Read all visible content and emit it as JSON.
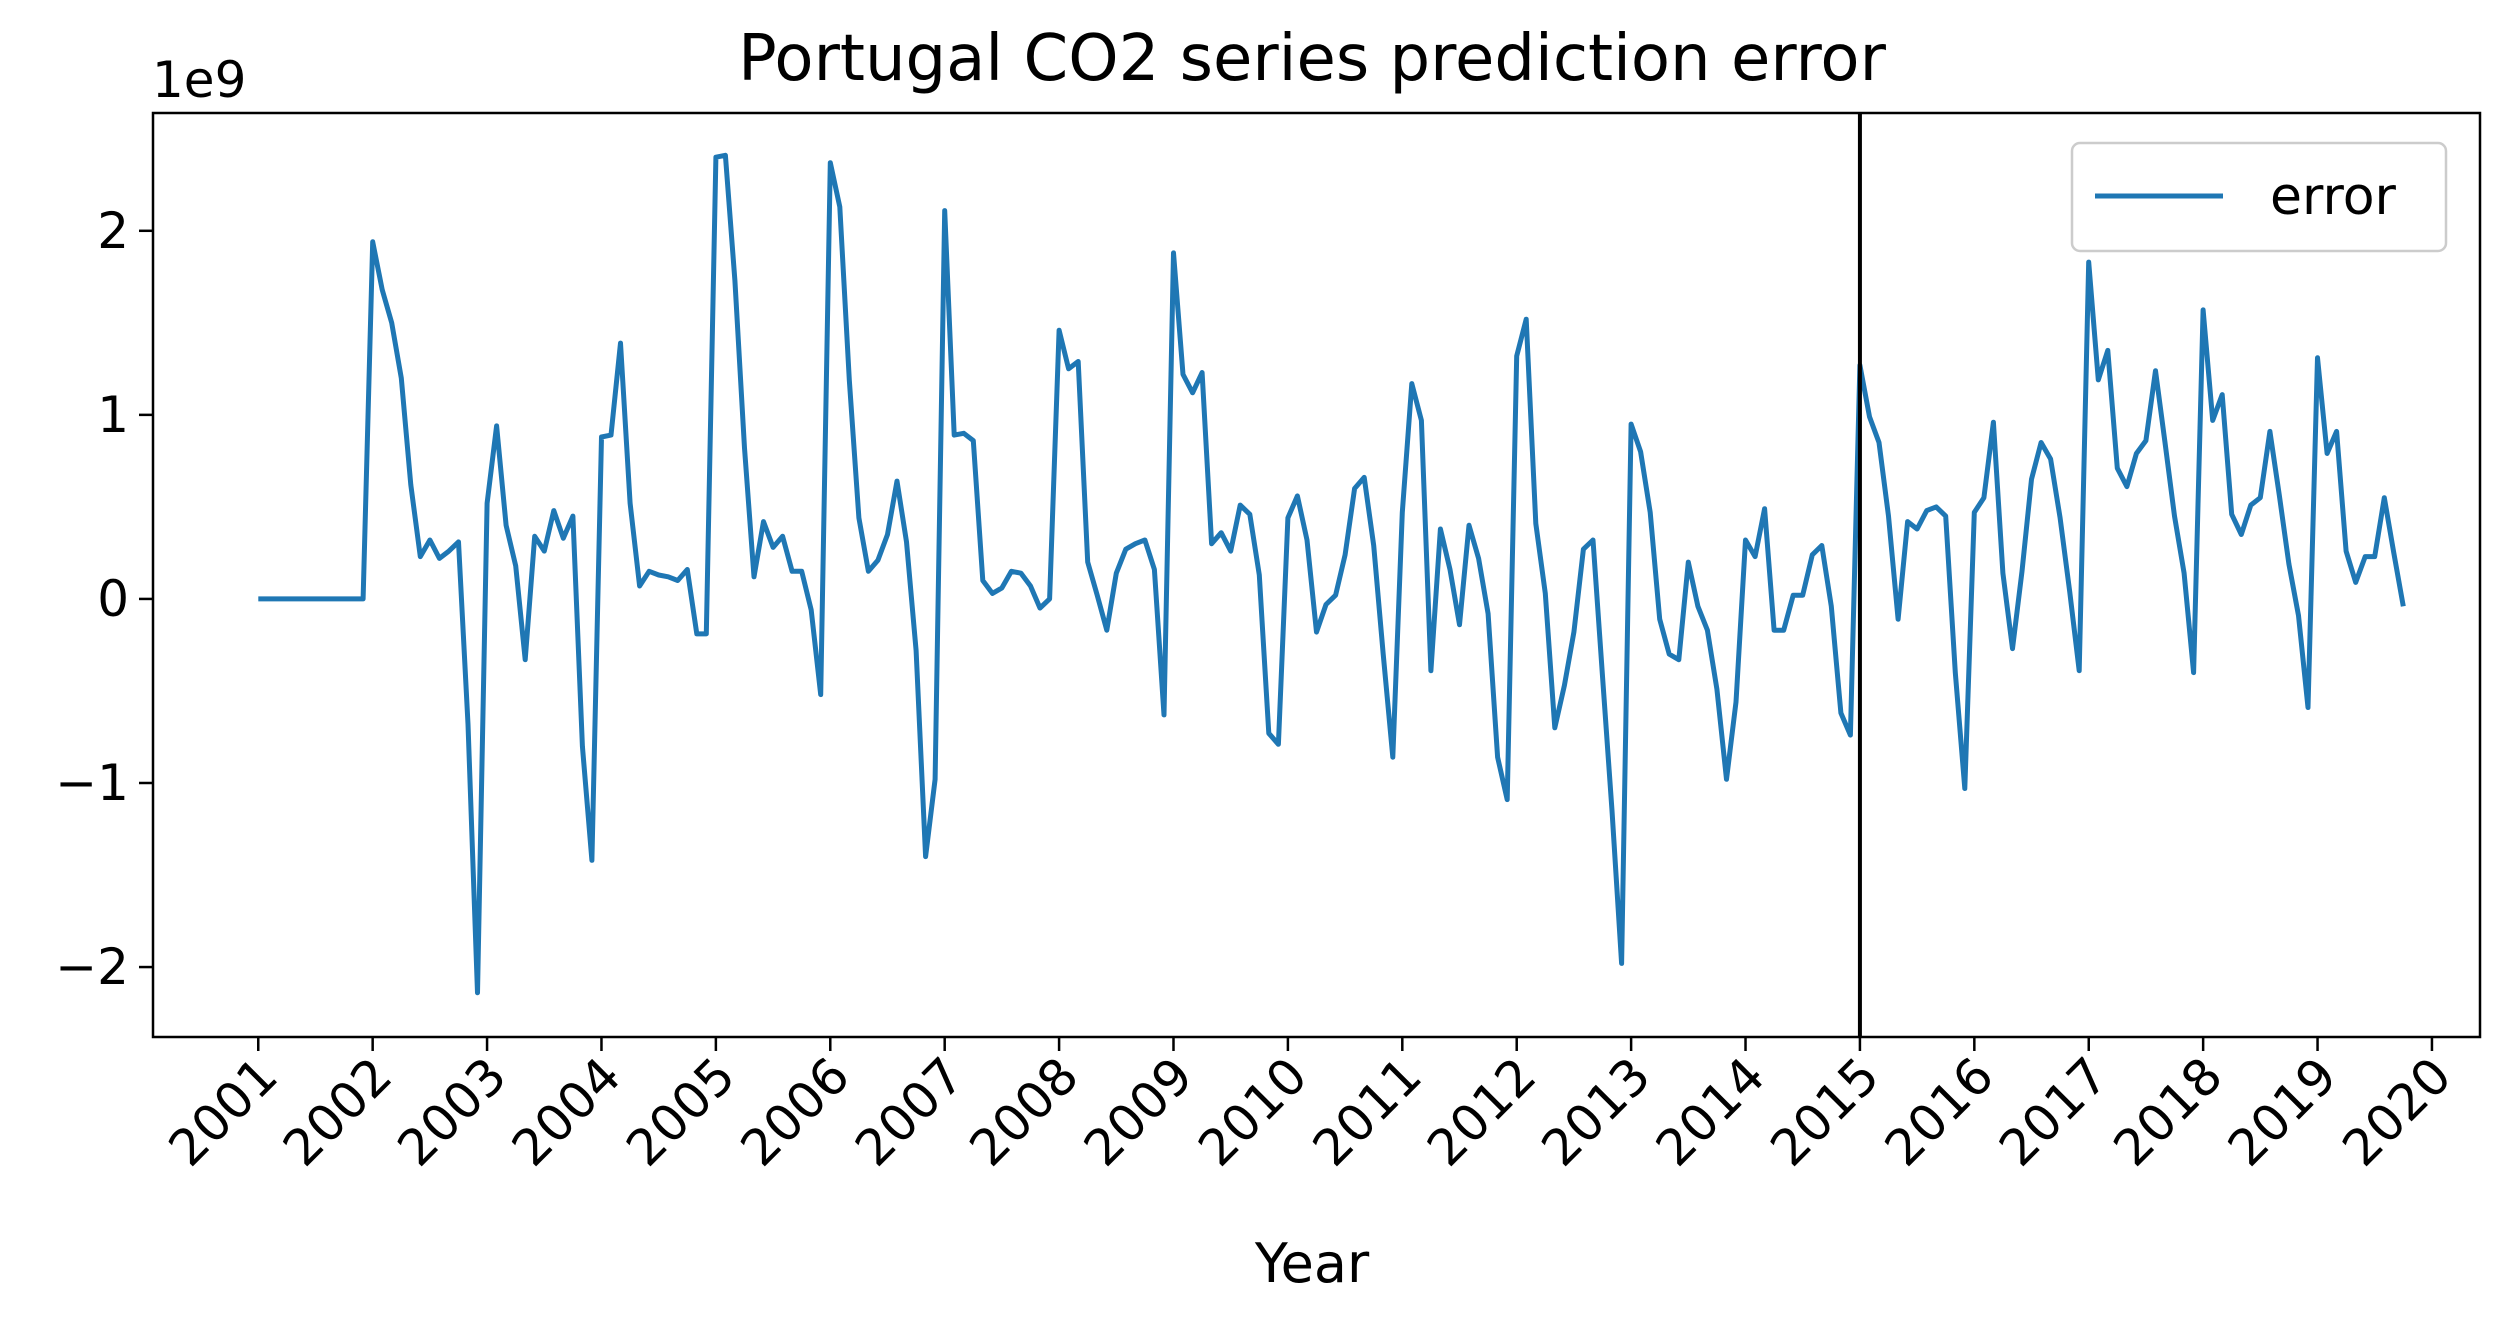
{
  "chart_data": {
    "type": "line",
    "title": "Portugal  CO2 series prediction error",
    "xlabel": "Year",
    "ylabel": "",
    "y_offset_label": "1e9",
    "y_scale_factor": 1000000000,
    "xlim": [
      2000.08,
      2020.42
    ],
    "ylim": [
      -2.38,
      2.64
    ],
    "x_ticks": [
      2001,
      2002,
      2003,
      2004,
      2005,
      2006,
      2007,
      2008,
      2009,
      2010,
      2011,
      2012,
      2013,
      2014,
      2015,
      2016,
      2017,
      2018,
      2019,
      2020
    ],
    "x_tick_labels": [
      "2001",
      "2002",
      "2003",
      "2004",
      "2005",
      "2006",
      "2007",
      "2008",
      "2009",
      "2010",
      "2011",
      "2012",
      "2013",
      "2014",
      "2015",
      "2016",
      "2017",
      "2018",
      "2019",
      "2020"
    ],
    "y_ticks": [
      -2,
      -1,
      0,
      1,
      2
    ],
    "y_tick_labels": [
      "−2",
      "−1",
      "0",
      "1",
      "2"
    ],
    "vline_x": 2015.0,
    "vline_color": "#000000",
    "grid": false,
    "legend_position": "top-right",
    "series": [
      {
        "name": "error",
        "color": "#1f77b4",
        "x_start": 2001.0,
        "x_step_months": 1,
        "values": [
          0,
          0,
          0,
          0,
          0,
          0,
          0,
          0,
          0,
          0,
          0,
          0,
          1.94,
          1.68,
          1.5,
          1.2,
          0.62,
          0.23,
          0.32,
          0.22,
          0.26,
          0.31,
          -0.68,
          -2.14,
          0.52,
          0.94,
          0.4,
          0.18,
          -0.33,
          0.34,
          0.26,
          0.48,
          0.33,
          0.45,
          -0.8,
          -1.42,
          0.88,
          0.89,
          1.39,
          0.52,
          0.07,
          0.15,
          0.13,
          0.12,
          0.1,
          0.16,
          -0.19,
          -0.19,
          2.4,
          2.41,
          1.73,
          0.82,
          0.12,
          0.42,
          0.28,
          0.34,
          0.15,
          0.15,
          -0.06,
          -0.52,
          2.37,
          2.13,
          1.19,
          0.44,
          0.15,
          0.21,
          0.35,
          0.64,
          0.31,
          -0.28,
          -1.4,
          -0.98,
          2.11,
          0.89,
          0.9,
          0.86,
          0.1,
          0.03,
          0.06,
          0.15,
          0.14,
          0.07,
          -0.05,
          0.0,
          1.46,
          1.25,
          1.29,
          0.2,
          0.02,
          -0.17,
          0.14,
          0.27,
          0.3,
          0.32,
          0.16,
          -0.63,
          1.88,
          1.22,
          1.12,
          1.23,
          0.3,
          0.36,
          0.26,
          0.51,
          0.46,
          0.13,
          -0.73,
          -0.79,
          0.44,
          0.56,
          0.32,
          -0.18,
          -0.03,
          0.02,
          0.24,
          0.6,
          0.66,
          0.29,
          -0.3,
          -0.86,
          0.47,
          1.17,
          0.97,
          -0.39,
          0.38,
          0.16,
          -0.14,
          0.4,
          0.22,
          -0.08,
          -0.86,
          -1.09,
          1.32,
          1.52,
          0.41,
          0.03,
          -0.7,
          -0.47,
          -0.18,
          0.27,
          0.32,
          -0.42,
          -1.15,
          -1.98,
          0.95,
          0.8,
          0.47,
          -0.11,
          -0.3,
          -0.33,
          0.2,
          -0.04,
          -0.17,
          -0.49,
          -0.98,
          -0.56,
          0.32,
          0.23,
          0.49,
          -0.17,
          -0.17,
          0.02,
          0.02,
          0.24,
          0.29,
          -0.04,
          -0.62,
          -0.74,
          1.27,
          0.99,
          0.85,
          0.45,
          -0.11,
          0.42,
          0.38,
          0.48,
          0.5,
          0.45,
          -0.4,
          -1.03,
          0.47,
          0.55,
          0.96,
          0.14,
          -0.27,
          0.15,
          0.65,
          0.85,
          0.76,
          0.44,
          0.04,
          -0.39,
          1.83,
          1.19,
          1.35,
          0.71,
          0.61,
          0.79,
          0.86,
          1.24,
          0.85,
          0.45,
          0.14,
          -0.4,
          1.57,
          0.97,
          1.11,
          0.46,
          0.35,
          0.51,
          0.55,
          0.91,
          0.56,
          0.19,
          -0.09,
          -0.59,
          1.31,
          0.79,
          0.91,
          0.26,
          0.09,
          0.23,
          0.23,
          0.55,
          0.25,
          -0.04
        ]
      }
    ]
  }
}
